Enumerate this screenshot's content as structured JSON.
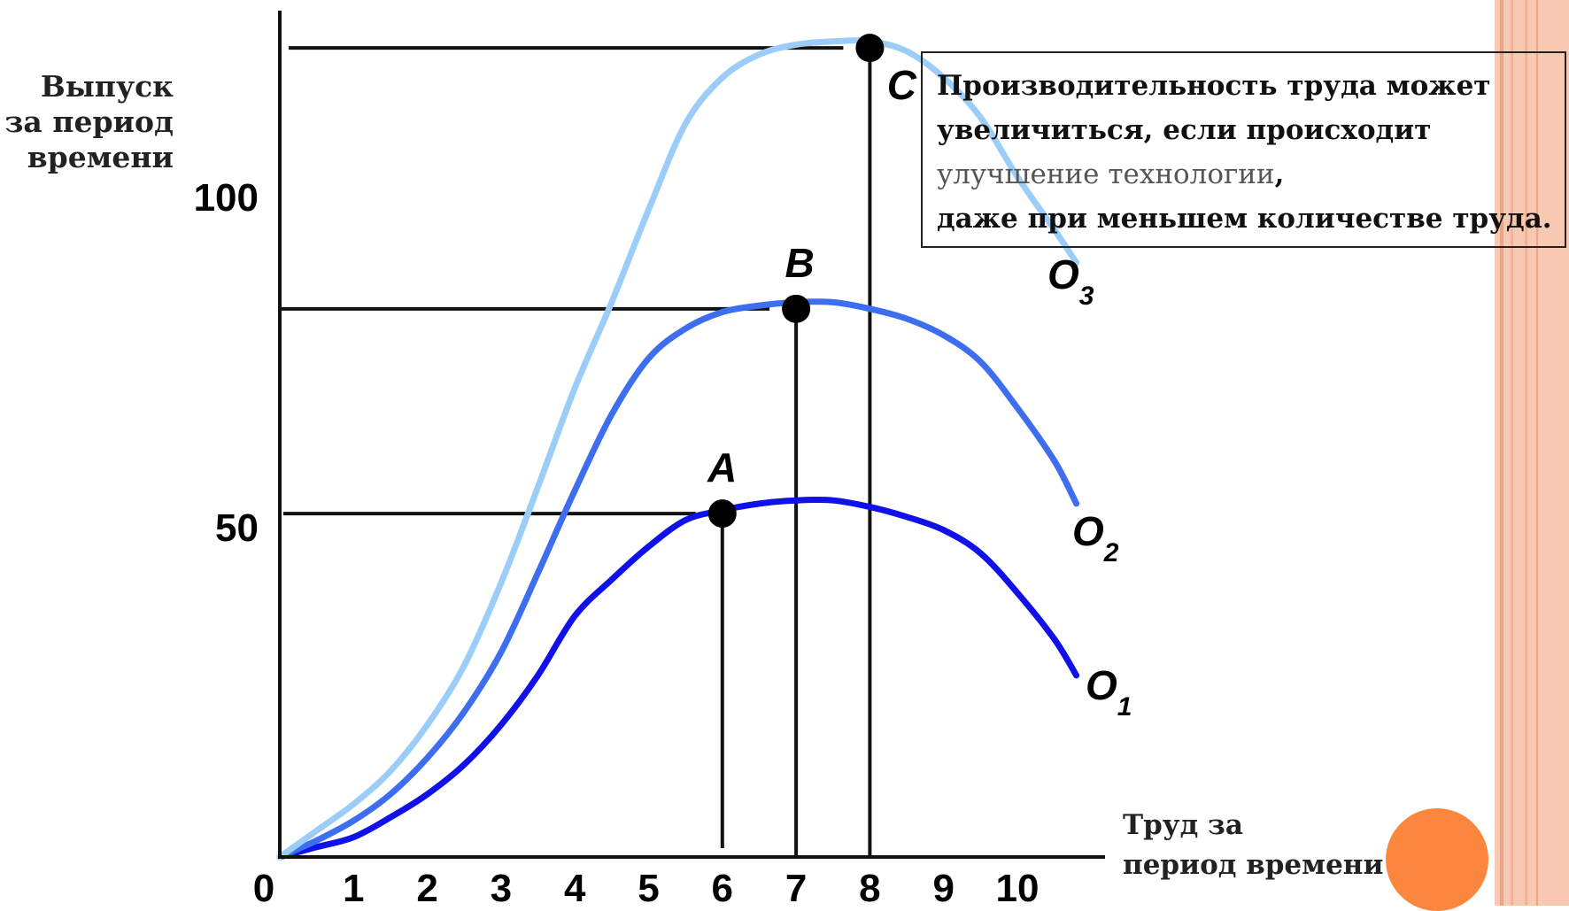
{
  "chart_data": {
    "type": "line",
    "ylabel_lines": [
      "Выпуск",
      "за период",
      "времени"
    ],
    "xlabel_lines": [
      "Труд за",
      "период времени"
    ],
    "x_ticks": [
      "0",
      "1",
      "2",
      "3",
      "4",
      "5",
      "6",
      "7",
      "8",
      "9",
      "10"
    ],
    "y_ticks": [
      {
        "value": 50,
        "label": "50"
      },
      {
        "value": 100,
        "label": "100"
      }
    ],
    "xlim": [
      0,
      11.2
    ],
    "ylim": [
      0,
      127
    ],
    "series": [
      {
        "name": "O",
        "subscript": "1",
        "color": "#1010e8",
        "points": [
          [
            0,
            0
          ],
          [
            0.5,
            1.5
          ],
          [
            1,
            3
          ],
          [
            1.5,
            6
          ],
          [
            2,
            9.5
          ],
          [
            2.5,
            14
          ],
          [
            3,
            20
          ],
          [
            3.5,
            27.5
          ],
          [
            4,
            36.5
          ],
          [
            4.5,
            42
          ],
          [
            5,
            47
          ],
          [
            5.5,
            51
          ],
          [
            6,
            52.5
          ],
          [
            6.5,
            53.5
          ],
          [
            7,
            54
          ],
          [
            7.5,
            54
          ],
          [
            8,
            53
          ],
          [
            8.5,
            51.5
          ],
          [
            9,
            49.5
          ],
          [
            9.5,
            46
          ],
          [
            10,
            40
          ],
          [
            10.5,
            33
          ],
          [
            10.8,
            27.5
          ]
        ]
      },
      {
        "name": "O",
        "subscript": "2",
        "color": "#3d6ef0",
        "points": [
          [
            0,
            0
          ],
          [
            0.5,
            2.5
          ],
          [
            1,
            5.5
          ],
          [
            1.5,
            9.5
          ],
          [
            2,
            15
          ],
          [
            2.5,
            22
          ],
          [
            3,
            31
          ],
          [
            3.5,
            43
          ],
          [
            4,
            55.5
          ],
          [
            4.5,
            67
          ],
          [
            5,
            75.5
          ],
          [
            5.5,
            80
          ],
          [
            6,
            82.5
          ],
          [
            6.5,
            83.5
          ],
          [
            7,
            84
          ],
          [
            7.5,
            84
          ],
          [
            8,
            83
          ],
          [
            8.5,
            81.5
          ],
          [
            9,
            79
          ],
          [
            9.5,
            75
          ],
          [
            10,
            68
          ],
          [
            10.5,
            60
          ],
          [
            10.8,
            53.5
          ]
        ]
      },
      {
        "name": "O",
        "subscript": "3",
        "color": "#9ccdf8",
        "points": [
          [
            0,
            0
          ],
          [
            0.5,
            4
          ],
          [
            1,
            8
          ],
          [
            1.5,
            13
          ],
          [
            2,
            20
          ],
          [
            2.5,
            29
          ],
          [
            3,
            41.5
          ],
          [
            3.5,
            56
          ],
          [
            4,
            71
          ],
          [
            4.5,
            84
          ],
          [
            5,
            98
          ],
          [
            5.5,
            111
          ],
          [
            6,
            118
          ],
          [
            6.5,
            121.5
          ],
          [
            7,
            123
          ],
          [
            7.5,
            123.5
          ],
          [
            8,
            123.5
          ],
          [
            8.5,
            122
          ],
          [
            9,
            118
          ],
          [
            9.5,
            112
          ],
          [
            10,
            103
          ],
          [
            10.5,
            95
          ],
          [
            10.8,
            90
          ]
        ]
      }
    ],
    "points": [
      {
        "label": "A",
        "x": 6,
        "y": 52
      },
      {
        "label": "B",
        "x": 7,
        "y": 83
      },
      {
        "label": "C",
        "x": 8,
        "y": 122.5
      }
    ]
  },
  "note": {
    "line1": "Производительность труда может",
    "line2": "увеличиться, если происходит",
    "line3_light": "улучшение технологии",
    "line3_comma": ",",
    "line4": "даже при меньшем количестве труда."
  },
  "colors": {
    "slide_edge": "#f7c8b2",
    "decoration_dot": "#fb873f"
  }
}
